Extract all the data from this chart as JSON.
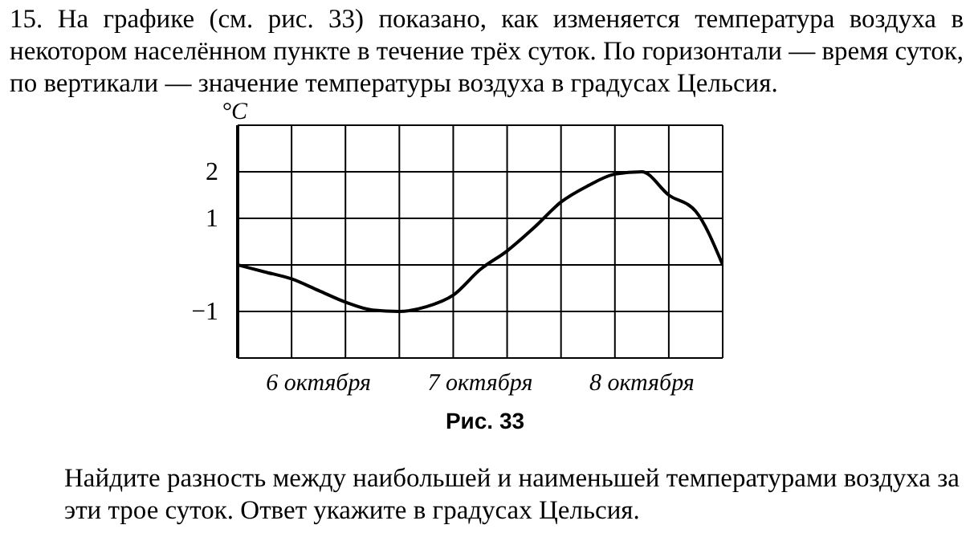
{
  "chart_data": {
    "type": "line",
    "title": "15. На графике (см. рис. 33) показано, как изменяется температура воздуха в некотором населённом пункте в течение трёх суток. По горизонтали — время суток, по вертикали — значение температуры воздуха в градусах Цельсия.",
    "ylabel": "°C",
    "annotations": [
      "Рис. 33",
      "Найдите разность между наибольшей и наименьшей температурами воздуха за эти трое суток. Ответ укажите в градусах Цельсия."
    ],
    "categories": [
      null,
      null,
      null,
      "6 октября",
      null,
      null,
      null,
      null,
      null,
      "7 октября",
      null,
      null,
      null,
      null,
      null,
      "8 октября",
      null,
      null,
      null
    ],
    "series": [
      {
        "color": "#000000",
        "values": [
          0,
          -0.15,
          -0.3,
          -0.55,
          -0.8,
          -0.97,
          -1.0,
          -0.9,
          -0.65,
          -0.1,
          0.3,
          0.8,
          1.35,
          1.7,
          1.95,
          2.0,
          1.5,
          1.15,
          0
        ]
      }
    ],
    "ylim": [
      -2,
      3
    ],
    "yticks": [
      {
        "value": -2,
        "label": null
      },
      {
        "value": -1,
        "label": "−1"
      },
      {
        "value": 0,
        "label": null
      },
      1,
      2,
      {
        "value": 3,
        "label": null
      }
    ],
    "grid": true
  }
}
